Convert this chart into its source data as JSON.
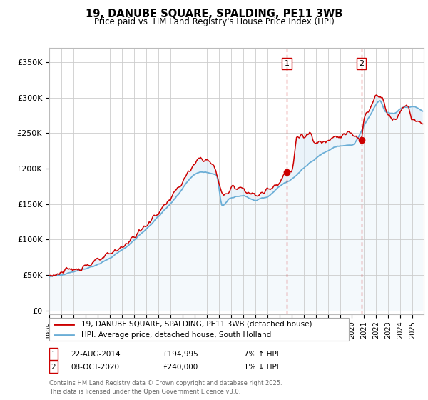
{
  "title": "19, DANUBE SQUARE, SPALDING, PE11 3WB",
  "subtitle": "Price paid vs. HM Land Registry's House Price Index (HPI)",
  "ylabel_ticks": [
    "£0",
    "£50K",
    "£100K",
    "£150K",
    "£200K",
    "£250K",
    "£300K",
    "£350K"
  ],
  "ytick_values": [
    0,
    50000,
    100000,
    150000,
    200000,
    250000,
    300000,
    350000
  ],
  "ylim": [
    -5000,
    370000
  ],
  "xlim_start": 1995.0,
  "xlim_end": 2025.92,
  "legend_line1": "19, DANUBE SQUARE, SPALDING, PE11 3WB (detached house)",
  "legend_line2": "HPI: Average price, detached house, South Holland",
  "marker1_date": "22-AUG-2014",
  "marker1_price": "£194,995",
  "marker1_pct": "7% ↑ HPI",
  "marker2_date": "08-OCT-2020",
  "marker2_price": "£240,000",
  "marker2_pct": "1% ↓ HPI",
  "footnote": "Contains HM Land Registry data © Crown copyright and database right 2025.\nThis data is licensed under the Open Government Licence v3.0.",
  "hpi_color": "#6baed6",
  "fill_color": "#d6e8f7",
  "price_color": "#cc0000",
  "marker1_x": 2014.63,
  "marker2_x": 2020.77,
  "marker1_y": 194995,
  "marker2_y": 240000,
  "background_color": "#ffffff",
  "plot_bg_color": "#ffffff",
  "grid_color": "#cccccc"
}
